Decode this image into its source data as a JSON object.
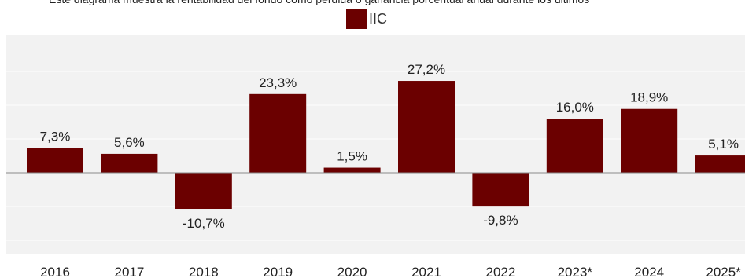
{
  "subtitle": "Este diagrama muestra la rentabilidad del fondo como pérdida o ganancia porcentual anual durante los últimos",
  "chart_data": {
    "type": "bar",
    "categories": [
      "2016",
      "2017",
      "2018",
      "2019",
      "2020",
      "2021",
      "2022",
      "2023*",
      "2024",
      "2025*"
    ],
    "series": [
      {
        "name": "IIC",
        "values": [
          7.3,
          5.6,
          -10.7,
          23.3,
          1.5,
          27.2,
          -9.8,
          16.0,
          18.9,
          5.1
        ],
        "labels": [
          "7,3%",
          "5,6%",
          "-10,7%",
          "23,3%",
          "1,5%",
          "27,2%",
          "-9,8%",
          "16,0%",
          "18,9%",
          "5,1%"
        ]
      }
    ],
    "ylim": [
      -22.5,
      35
    ],
    "legend_position": "top-center",
    "grid": true,
    "bar_color": "#6b0000"
  }
}
